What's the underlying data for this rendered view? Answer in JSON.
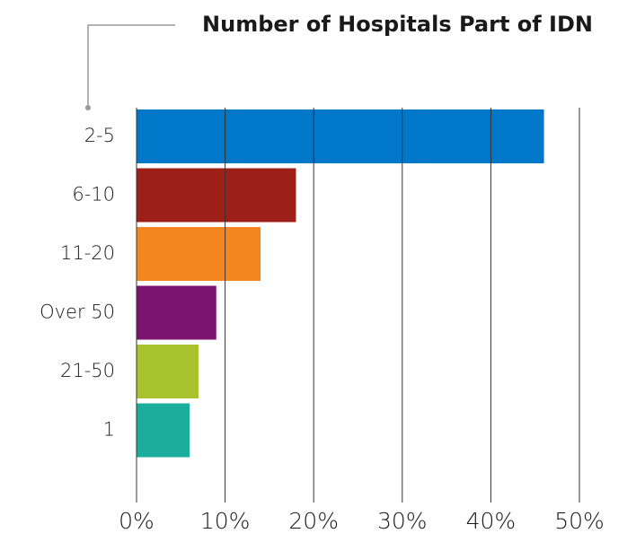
{
  "chart_data": {
    "type": "hbar",
    "title": "Number of Hospitals Part of IDN",
    "categories": [
      "2-5",
      "6-10",
      "11-20",
      "Over 50",
      "21-50",
      "1"
    ],
    "values": [
      46,
      18,
      14,
      9,
      7,
      6
    ],
    "colors": [
      "#0077c8",
      "#9e1f17",
      "#f5861f",
      "#7b1470",
      "#a8c32e",
      "#1bae9c"
    ],
    "xlim": [
      0,
      50
    ],
    "xticks": [
      {
        "value": 0,
        "label": "0%"
      },
      {
        "value": 10,
        "label": "10%"
      },
      {
        "value": 20,
        "label": "20%"
      },
      {
        "value": 30,
        "label": "30%"
      },
      {
        "value": 40,
        "label": "40%"
      },
      {
        "value": 50,
        "label": "50%"
      }
    ],
    "grid": true
  }
}
